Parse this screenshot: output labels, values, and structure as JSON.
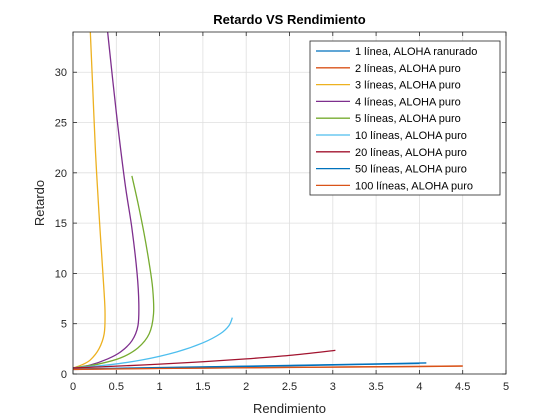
{
  "chart_data": {
    "type": "line",
    "title": "Retardo VS Rendimiento",
    "xlabel": "Rendimiento",
    "ylabel": "Retardo",
    "xlim": [
      0,
      5
    ],
    "ylim": [
      0,
      34
    ],
    "xticks": [
      "0",
      "0.5",
      "1",
      "1.5",
      "2",
      "2.5",
      "3",
      "3.5",
      "4",
      "4.5",
      "5"
    ],
    "yticks": [
      "0",
      "5",
      "10",
      "15",
      "20",
      "25",
      "30"
    ],
    "grid": true,
    "legend_position": "top-right",
    "series": [
      {
        "name": "1 línea, ALOHA ranurado",
        "color": "#0072BD",
        "x": [
          0.0,
          0.5,
          1.0,
          2.0,
          3.0,
          4.08
        ],
        "y": [
          0.5,
          0.57,
          0.64,
          0.78,
          0.93,
          1.1
        ]
      },
      {
        "name": "2 líneas, ALOHA puro",
        "color": "#D95319",
        "x": [
          0.0,
          1.0,
          2.0,
          3.0,
          4.0,
          4.5
        ],
        "y": [
          0.5,
          0.56,
          0.62,
          0.68,
          0.74,
          0.78
        ]
      },
      {
        "name": "3 líneas, ALOHA puro",
        "color": "#EDB120",
        "x": [
          0.0,
          0.1,
          0.2,
          0.3,
          0.36,
          0.37,
          0.36,
          0.33,
          0.3,
          0.26,
          0.23,
          0.2
        ],
        "y": [
          0.6,
          0.9,
          1.4,
          2.5,
          4.0,
          6.0,
          8.0,
          12.0,
          16.0,
          22.0,
          28.0,
          34.0
        ]
      },
      {
        "name": "4 líneas, ALOHA puro",
        "color": "#7E2F8E",
        "x": [
          0.0,
          0.2,
          0.4,
          0.55,
          0.68,
          0.75,
          0.76,
          0.74,
          0.68,
          0.6,
          0.5,
          0.4
        ],
        "y": [
          0.6,
          0.9,
          1.5,
          2.2,
          3.3,
          4.8,
          7.0,
          10.0,
          14.5,
          19.0,
          26.0,
          34.0
        ]
      },
      {
        "name": "5 líneas, ALOHA puro",
        "color": "#77AC30",
        "x": [
          0.0,
          0.3,
          0.55,
          0.75,
          0.88,
          0.93,
          0.92,
          0.88,
          0.82,
          0.75,
          0.68
        ],
        "y": [
          0.6,
          1.0,
          1.6,
          2.6,
          4.0,
          6.0,
          8.5,
          11.0,
          14.0,
          17.0,
          19.7
        ]
      },
      {
        "name": "10 líneas, ALOHA puro",
        "color": "#4DBEEE",
        "x": [
          0.0,
          0.4,
          0.8,
          1.2,
          1.5,
          1.7,
          1.8,
          1.84
        ],
        "y": [
          0.6,
          0.9,
          1.4,
          2.2,
          3.1,
          4.0,
          4.8,
          5.6
        ]
      },
      {
        "name": "20 líneas, ALOHA puro",
        "color": "#A2142F",
        "x": [
          0.0,
          0.5,
          1.0,
          1.5,
          2.0,
          2.5,
          3.03
        ],
        "y": [
          0.6,
          0.78,
          0.98,
          1.22,
          1.5,
          1.85,
          2.35
        ]
      },
      {
        "name": "50 líneas, ALOHA puro",
        "color": "#0072BD",
        "x": [
          0.0,
          1.0,
          2.0,
          3.0,
          4.0
        ],
        "y": [
          0.45,
          0.6,
          0.75,
          0.9,
          1.05
        ]
      },
      {
        "name": "100 líneas, ALOHA puro",
        "color": "#D95319",
        "x": [
          0.0,
          1.0,
          2.0,
          3.0,
          4.0,
          4.5
        ],
        "y": [
          0.45,
          0.55,
          0.62,
          0.69,
          0.76,
          0.8
        ]
      }
    ]
  }
}
